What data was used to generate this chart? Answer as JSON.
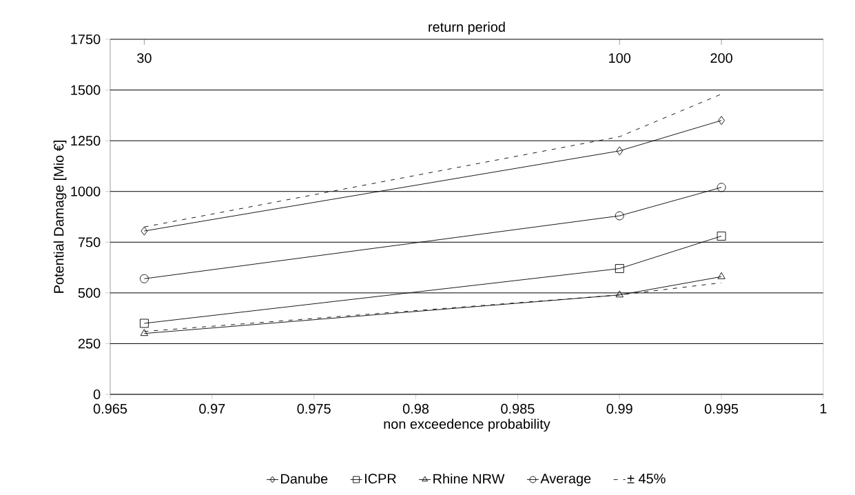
{
  "chart_data": {
    "type": "line",
    "xlabel": "non exceedence probability",
    "ylabel": "Potential Damage [Mio €]",
    "x2label": "return period",
    "x": [
      0.96667,
      0.99,
      0.995
    ],
    "series": [
      {
        "name": "Danube",
        "color": "#000000",
        "marker": "diamond",
        "line_style": "solid",
        "values": [
          805,
          1200,
          1350
        ]
      },
      {
        "name": "ICPR",
        "color": "#000000",
        "marker": "square",
        "line_style": "solid",
        "values": [
          350,
          620,
          780
        ]
      },
      {
        "name": "Rhine NRW",
        "color": "#000000",
        "marker": "triangle",
        "line_style": "solid",
        "values": [
          300,
          490,
          580
        ]
      },
      {
        "name": "Average",
        "color": "#000000",
        "marker": "circle",
        "line_style": "solid",
        "values": [
          570,
          880,
          1020
        ]
      },
      {
        "name": "± 45%",
        "color": "#000000",
        "marker": "none",
        "line_style": "dashed",
        "values": [
          825,
          1270,
          1480
        ]
      },
      {
        "color": "#000000",
        "marker": "none",
        "line_style": "dashed",
        "values": [
          310,
          490,
          550
        ]
      }
    ],
    "xlim": [
      0.965,
      1
    ],
    "xticks": [
      0.965,
      0.97,
      0.975,
      0.98,
      0.985,
      0.99,
      0.995,
      1
    ],
    "annotations": [
      "30",
      "100",
      "200"
    ],
    "ylim": [
      0,
      1750
    ],
    "yticks": [
      0,
      250,
      500,
      750,
      1000,
      1250,
      1500,
      1750
    ],
    "grid": "y",
    "legend": "bottom"
  }
}
